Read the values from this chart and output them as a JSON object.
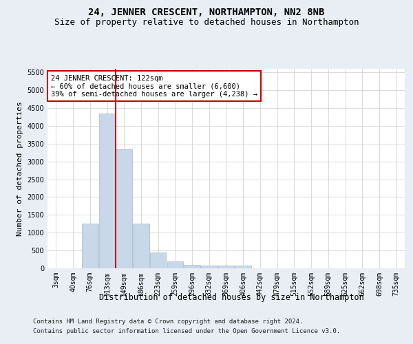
{
  "title": "24, JENNER CRESCENT, NORTHAMPTON, NN2 8NB",
  "subtitle": "Size of property relative to detached houses in Northampton",
  "xlabel": "Distribution of detached houses by size in Northampton",
  "ylabel": "Number of detached properties",
  "footer_line1": "Contains HM Land Registry data © Crown copyright and database right 2024.",
  "footer_line2": "Contains public sector information licensed under the Open Government Licence v3.0.",
  "bar_color": "#c8d8e8",
  "bar_edge_color": "#a0b8d0",
  "grid_color": "#cccccc",
  "vline_color": "#cc0000",
  "annotation_text": "24 JENNER CRESCENT: 122sqm\n← 60% of detached houses are smaller (6,600)\n39% of semi-detached houses are larger (4,238) →",
  "annotation_box_color": "#ffffff",
  "annotation_box_edge_color": "#cc0000",
  "categories": [
    "3sqm",
    "40sqm",
    "76sqm",
    "113sqm",
    "149sqm",
    "186sqm",
    "223sqm",
    "259sqm",
    "296sqm",
    "332sqm",
    "369sqm",
    "406sqm",
    "442sqm",
    "479sqm",
    "515sqm",
    "552sqm",
    "589sqm",
    "625sqm",
    "662sqm",
    "698sqm",
    "735sqm"
  ],
  "values": [
    0,
    0,
    1250,
    4350,
    3350,
    1250,
    450,
    200,
    100,
    80,
    75,
    75,
    0,
    0,
    0,
    0,
    0,
    0,
    0,
    0,
    0
  ],
  "ylim": [
    0,
    5600
  ],
  "yticks": [
    0,
    500,
    1000,
    1500,
    2000,
    2500,
    3000,
    3500,
    4000,
    4500,
    5000,
    5500
  ],
  "background_color": "#e8eef4",
  "plot_background_color": "#ffffff",
  "title_fontsize": 10,
  "subtitle_fontsize": 9,
  "tick_fontsize": 7,
  "ylabel_fontsize": 8,
  "xlabel_fontsize": 8.5,
  "annotation_fontsize": 7.5,
  "footer_fontsize": 6.5
}
